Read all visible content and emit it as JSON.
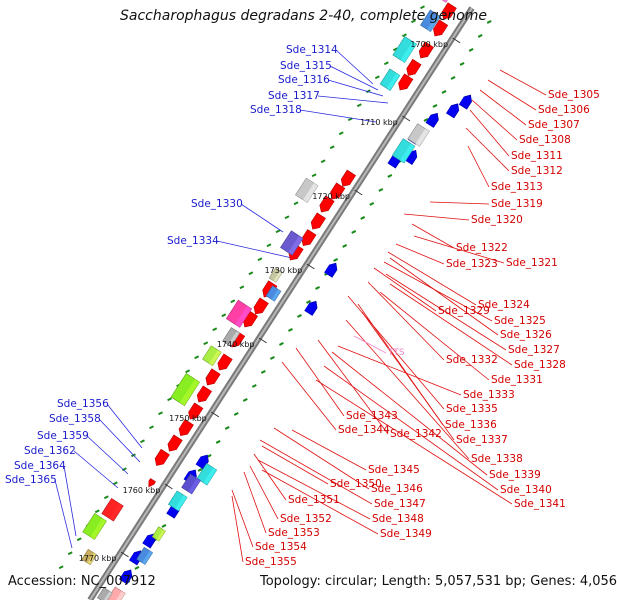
{
  "title": "Saccharophagus degradans 2-40, complete genome",
  "footer": {
    "accession": "Accession: NC_007912",
    "topology": "Topology: circular; Length: 5,057,531 bp; Genes: 4,056"
  },
  "colors": {
    "backbone": "#707070",
    "forward_strand": "#ff0000",
    "reverse_strand": "#0000ee",
    "gc_marker": "#007700",
    "forward_label": "#d40000",
    "reverse_label": "#1a1acc",
    "rna_label": "#ee88cc"
  },
  "kbp_ticks": [
    "1700 kbp",
    "1710 kbp",
    "1720 kbp",
    "1730 kbp",
    "1740 kbp",
    "1750 kbp",
    "1760 kbp",
    "1770 kbp"
  ],
  "reverse_labels": [
    "Sde_1314",
    "Sde_1315",
    "Sde_1316",
    "Sde_1317",
    "Sde_1318",
    "Sde_1330",
    "Sde_1334",
    "Sde_1356",
    "Sde_1358",
    "Sde_1359",
    "Sde_1362",
    "Sde_1364",
    "Sde_1365"
  ],
  "forward_labels": [
    "Sde_1305",
    "Sde_1306",
    "Sde_1307",
    "Sde_1308",
    "Sde_1311",
    "Sde_1312",
    "Sde_1313",
    "Sde_1319",
    "Sde_1320",
    "Sde_1322",
    "Sde_1321",
    "Sde_1323",
    "Sde_1324",
    "Sde_1329",
    "Sde_1325",
    "Sde_1326",
    "Sde_1327",
    "Sde_1332",
    "Sde_1328",
    "Sde_1331",
    "Sde_1333",
    "Sde_1335",
    "Sde_1343",
    "Sde_1344",
    "Sde_1342",
    "Sde_1336",
    "Sde_1337",
    "Sde_1338",
    "Sde_1339",
    "Sde_1340",
    "Sde_1341",
    "Sde_1345",
    "Sde_1346",
    "Sde_1350",
    "Sde_1347",
    "Sde_1351",
    "Sde_1348",
    "Sde_1352",
    "Sde_1349",
    "Sde_1353",
    "Sde_1354",
    "Sde_1355"
  ],
  "rna_labels": [
    "TTS"
  ]
}
